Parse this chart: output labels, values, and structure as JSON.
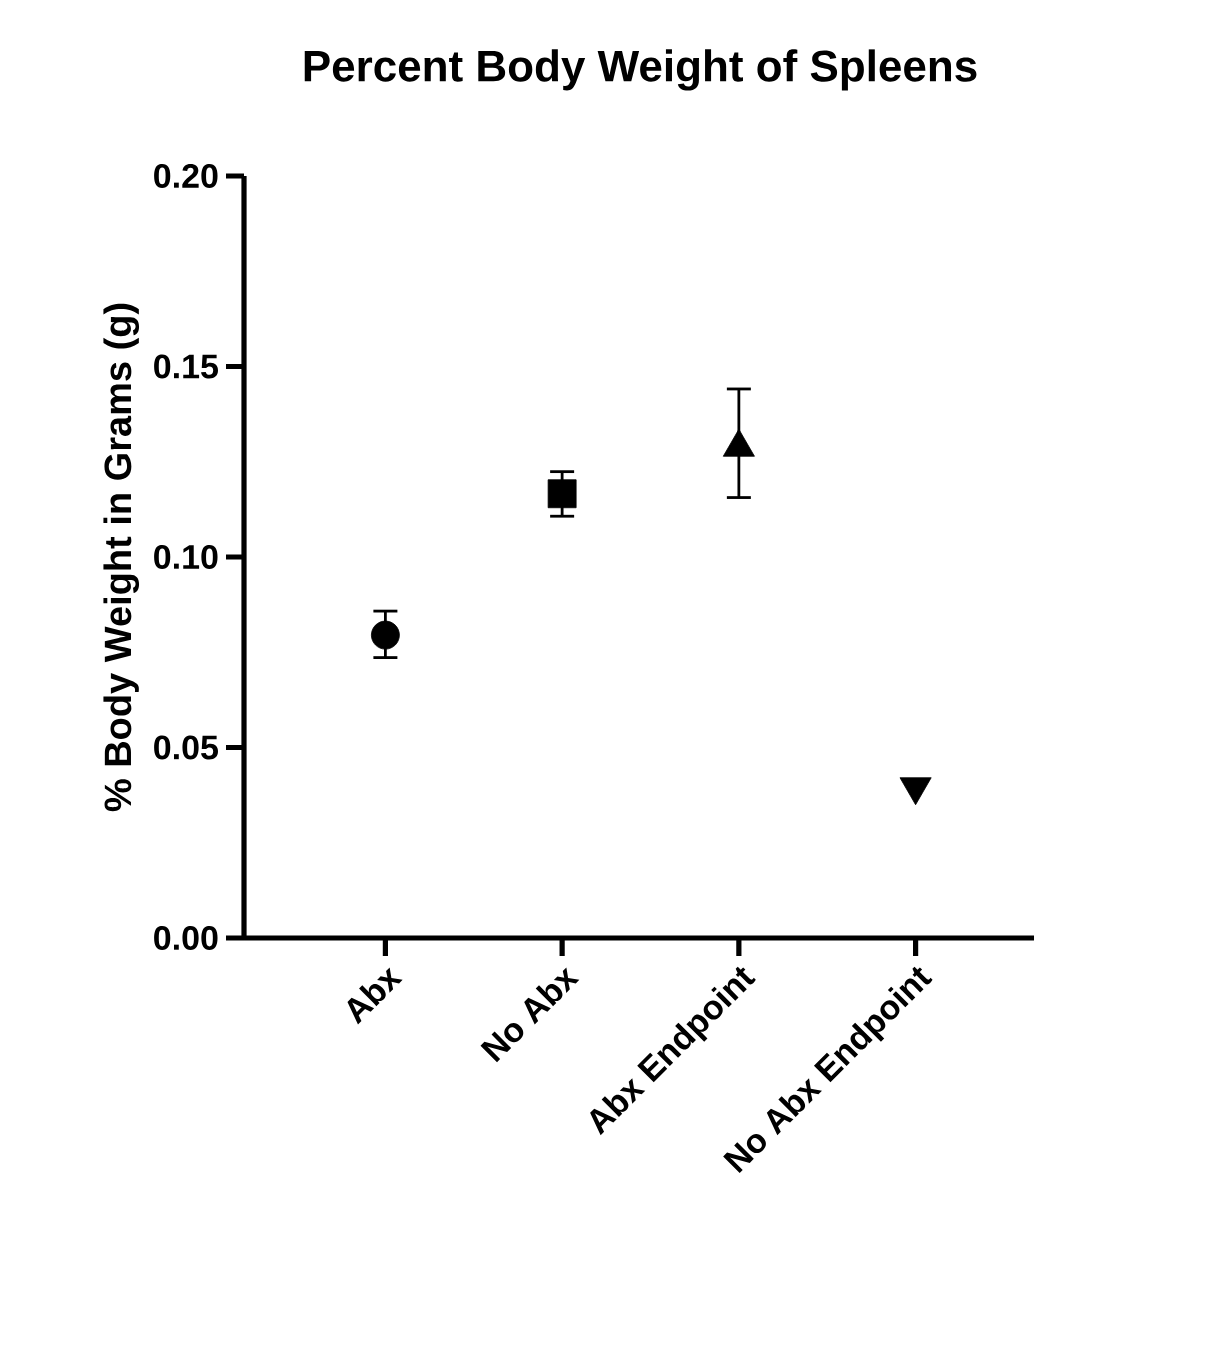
{
  "chart_data": {
    "type": "scatter",
    "title": "Percent Body Weight of Spleens",
    "ylabel": "% Body Weight in Grams (g)",
    "categories": [
      "Abx",
      "No Abx",
      "Abx Endpoint",
      "No Abx Endpoint"
    ],
    "ylim": [
      0,
      0.2
    ],
    "yticks": [
      {
        "value": 0,
        "label": "0.00"
      },
      {
        "value": 0.05,
        "label": "0.05"
      },
      {
        "value": 0.1,
        "label": "0.10"
      },
      {
        "value": 0.15,
        "label": "0.15"
      },
      {
        "value": 0.2,
        "label": "0.20"
      }
    ],
    "grid": false,
    "series": [
      {
        "color": "#000000",
        "marker": "circle",
        "values": [
          0.0795,
          null,
          null,
          null
        ],
        "errors": [
          [
            0.0736,
            0.0858
          ],
          null,
          null,
          null
        ]
      },
      {
        "color": "#000000",
        "marker": "square",
        "values": [
          null,
          0.1166,
          null,
          null
        ],
        "errors": [
          null,
          [
            0.1107,
            0.1224
          ],
          null,
          null
        ]
      },
      {
        "color": "#000000",
        "marker": "triangle",
        "values": [
          null,
          null,
          0.1288,
          null
        ],
        "errors": [
          null,
          null,
          [
            0.1156,
            0.1441
          ],
          null
        ]
      },
      {
        "color": "#000000",
        "marker": "triangle-down",
        "values": [
          null,
          null,
          null,
          0.0397
        ],
        "errors": [
          null,
          null,
          null,
          null
        ]
      }
    ]
  }
}
